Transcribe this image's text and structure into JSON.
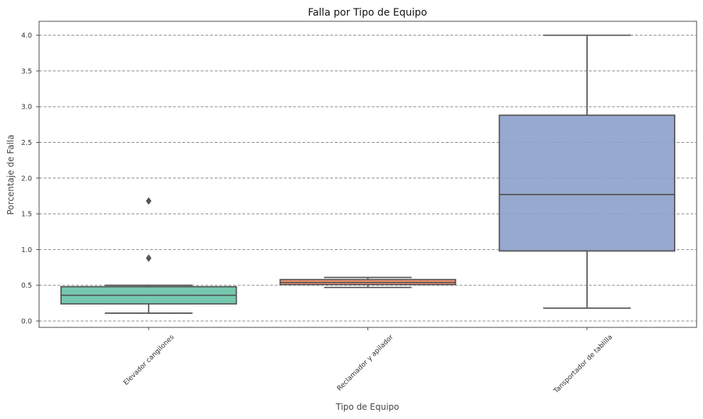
{
  "chart_data": {
    "type": "box",
    "title": "Falla por Tipo de Equipo",
    "xlabel": "Tipo de Equipo",
    "ylabel": "Porcentaje de Falla",
    "ylim": [
      -0.08,
      4.2
    ],
    "yticks": [
      "0.0",
      "0.5",
      "1.0",
      "1.5",
      "2.0",
      "2.5",
      "3.0",
      "3.5",
      "4.0"
    ],
    "grid": "horizontal-dashed",
    "categories": [
      "Elevador cangilones",
      "Reclamador y apilador",
      "Tansportador de tablilla"
    ],
    "boxes": [
      {
        "category": "Elevador cangilones",
        "whisker_low": 0.11,
        "q1": 0.24,
        "median": 0.36,
        "q3": 0.48,
        "whisker_high": 0.5,
        "outliers": [
          0.88,
          1.68
        ],
        "color": "#66c2a5"
      },
      {
        "category": "Reclamador y apilador",
        "whisker_low": 0.47,
        "q1": 0.51,
        "median": 0.54,
        "q3": 0.58,
        "whisker_high": 0.61,
        "outliers": [],
        "color": "#fc8d62"
      },
      {
        "category": "Tansportador de tablilla",
        "whisker_low": 0.18,
        "q1": 0.98,
        "median": 1.77,
        "q3": 2.88,
        "whisker_high": 4.0,
        "outliers": [],
        "color": "#8da0cb"
      }
    ]
  }
}
